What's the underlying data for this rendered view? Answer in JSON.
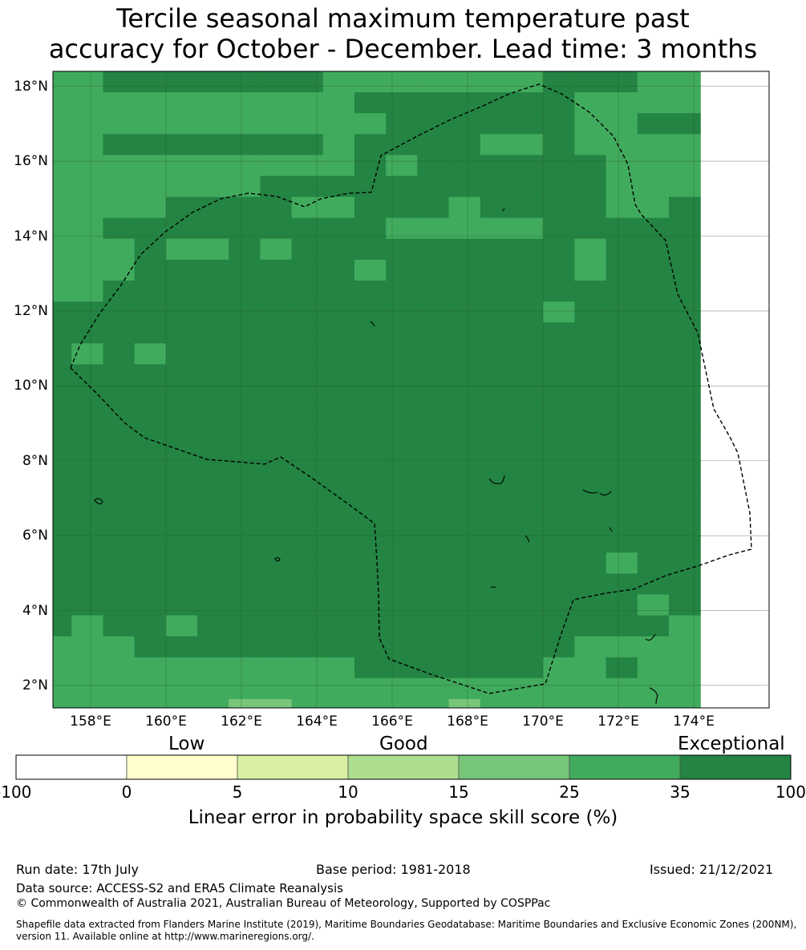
{
  "title": {
    "line1": "Tercile seasonal maximum temperature past",
    "line2": "accuracy for October - December. Lead time: 3 months"
  },
  "map": {
    "lat_ticks": [
      "18°N",
      "16°N",
      "14°N",
      "12°N",
      "10°N",
      "8°N",
      "6°N",
      "4°N",
      "2°N"
    ],
    "lon_ticks": [
      "158°E",
      "160°E",
      "162°E",
      "164°E",
      "166°E",
      "168°E",
      "170°E",
      "172°E",
      "174°E"
    ],
    "lon_range": [
      157,
      176
    ],
    "lat_range": [
      1.4,
      18.4
    ],
    "class_colors": [
      "#ffffcc",
      "#d9f0a3",
      "#addd8e",
      "#78c679",
      "#41ab5d",
      "#238443"
    ],
    "grid_rows": [
      "445555555444444455544",
      "444444444455555554444",
      "444444444445555554455",
      "445555555455554454444",
      "444444444456555555444",
      "444444455555555555444",
      "446455554455565555445",
      "445555555556444455555",
      "444544545555555554555",
      "444555555545555556555",
      "445555555555555555555",
      "555555555555555565555",
      "555555555555555555555",
      "545655555555555555555",
      "555555555555555555555",
      "555555555555555555555",
      "555555555555555555555",
      "555555555555555555555",
      "555555555555555555555",
      "555555555555555555555",
      "555555555555555555555",
      "555555555555555555555",
      "555555555555555555555",
      "555555555555555555455",
      "555555555555555555555",
      "555555555555555555545",
      "545545555555555555554",
      "444555555555555554444",
      "444444444455555544544",
      "444444444444444444444",
      "444444334444434444444",
      "444444334334434443444"
    ]
  },
  "colorbar": {
    "categories": [
      "Low",
      "Good",
      "Exceptional"
    ],
    "ticks": [
      "-100",
      "0",
      "5",
      "10",
      "15",
      "25",
      "35",
      "100"
    ],
    "colors": [
      "#ffffff",
      "#ffffcc",
      "#d9f0a3",
      "#addd8e",
      "#78c679",
      "#41ab5d",
      "#238443"
    ],
    "label": "Linear error in probability space skill score (%)"
  },
  "footer": {
    "run_date": "Run date: 17th July",
    "base_period": "Base period: 1981-2018",
    "issued": "Issued: 21/12/2021",
    "data_source": "Data source: ACCESS-S2 and ERA5 Climate Reanalysis",
    "copyright": "© Commonwealth of Australia 2021, Australian Bureau of Meteorology, Supported by COSPPac",
    "shapefile": "Shapefile data extracted from Flanders Marine Institute (2019), Maritime Boundaries Geodatabase: Maritime Boundaries and Exclusive Economic Zones (200NM), version 11. Available online at http://www.marineregions.org/."
  }
}
